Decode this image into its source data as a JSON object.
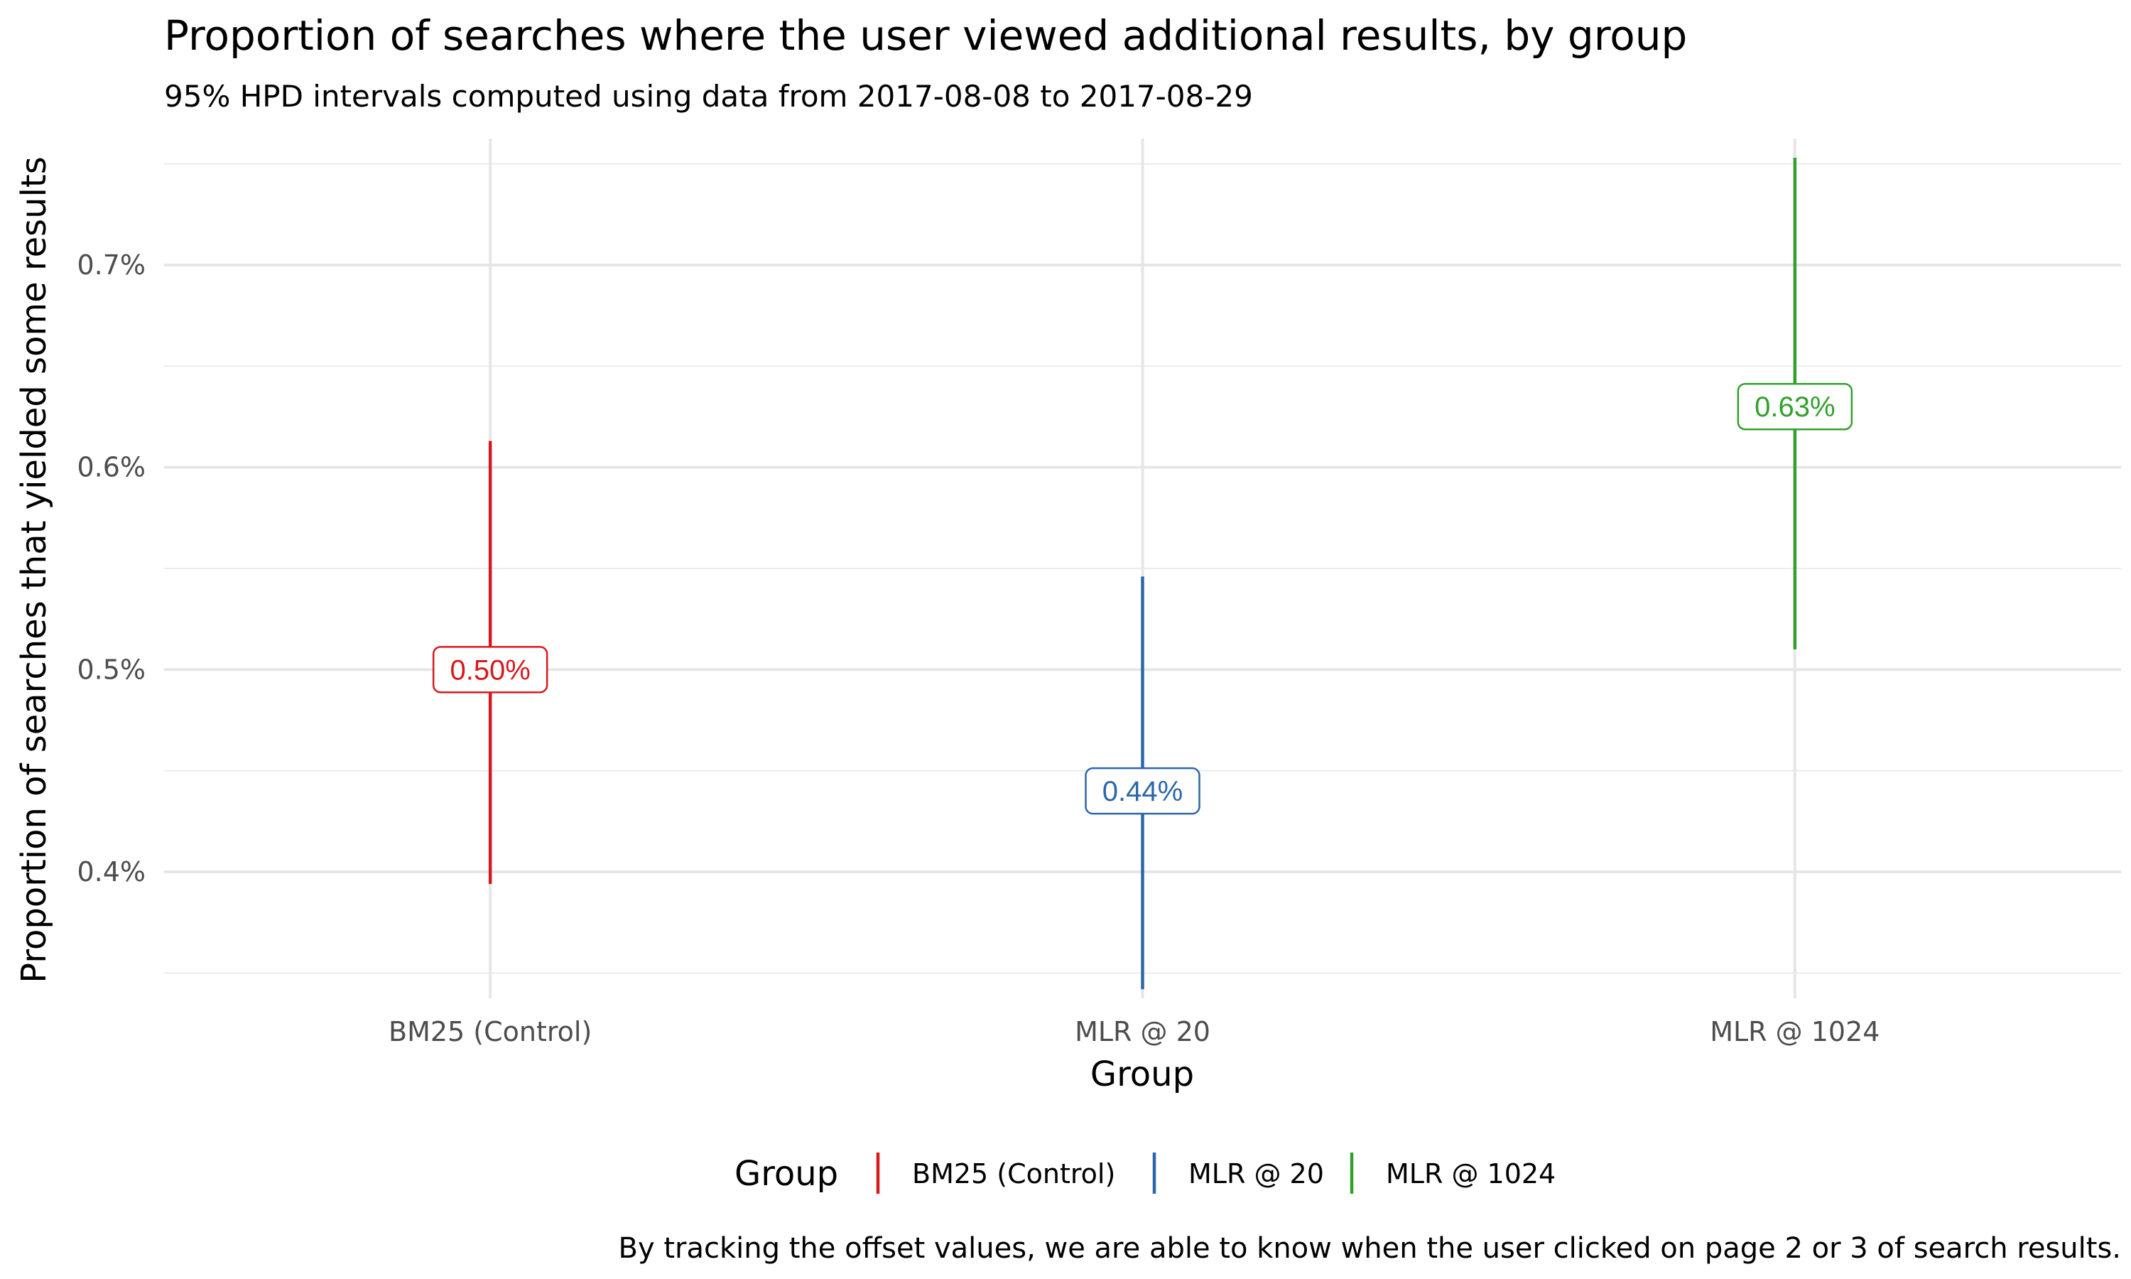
{
  "chart_data": {
    "type": "errorbar",
    "title": "Proportion of searches where the user viewed additional results, by group",
    "subtitle": "95% HPD intervals computed using data from 2017-08-08 to 2017-08-29",
    "xlabel": "Group",
    "ylabel": "Proportion of searches that yielded some results",
    "caption": "By tracking the offset values, we are able to know when the user clicked on page 2 or 3 of search results.",
    "categories": [
      "BM25 (Control)",
      "MLR @ 20",
      "MLR @ 1024"
    ],
    "y_unit": "%",
    "ylim": [
      0.3375,
      0.7625
    ],
    "y_major_ticks": [
      0.4,
      0.5,
      0.6,
      0.7
    ],
    "y_tick_labels": [
      "0.4%",
      "0.5%",
      "0.6%",
      "0.7%"
    ],
    "y_minor_ticks": [
      0.35,
      0.45,
      0.55,
      0.65,
      0.75
    ],
    "grid": true,
    "legend": {
      "title": "Group",
      "position": "bottom"
    },
    "series": [
      {
        "name": "BM25 (Control)",
        "point": 0.5,
        "lower": 0.394,
        "upper": 0.613,
        "label": "0.50%",
        "color": "#d7191c"
      },
      {
        "name": "MLR @ 20",
        "point": 0.44,
        "lower": 0.342,
        "upper": 0.546,
        "label": "0.44%",
        "color": "#2c67a8"
      },
      {
        "name": "MLR @ 1024",
        "point": 0.63,
        "lower": 0.51,
        "upper": 0.753,
        "label": "0.63%",
        "color": "#33a02c"
      }
    ]
  }
}
